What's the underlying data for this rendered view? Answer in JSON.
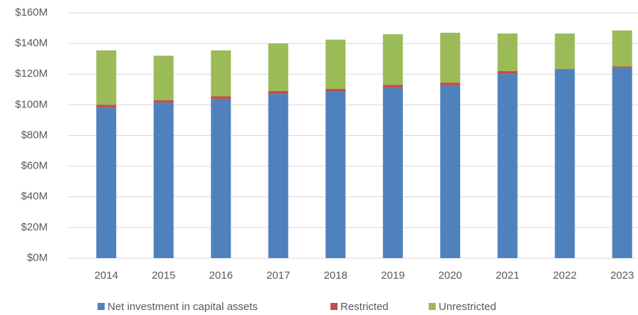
{
  "chart_data": {
    "type": "stacked_bar",
    "categories": [
      "2014",
      "2015",
      "2016",
      "2017",
      "2018",
      "2019",
      "2020",
      "2021",
      "2022",
      "2023"
    ],
    "series": [
      {
        "name": "Net investment in capital assets",
        "color": "#4f81bd",
        "values": [
          98,
          101.5,
          103.5,
          107,
          108.5,
          111,
          112.5,
          120,
          123,
          124
        ]
      },
      {
        "name": "Restricted",
        "color": "#c0504d",
        "values": [
          2,
          1.5,
          2,
          2,
          2,
          2,
          2,
          2,
          0.5,
          1
        ]
      },
      {
        "name": "Unrestricted",
        "color": "#9bbb59",
        "values": [
          35.5,
          29,
          30,
          31,
          32,
          33,
          32.5,
          24.5,
          23,
          23.5
        ]
      }
    ],
    "ylim": [
      0,
      160
    ],
    "yticks": [
      {
        "value": 0,
        "label": "$0M"
      },
      {
        "value": 20,
        "label": "$20M"
      },
      {
        "value": 40,
        "label": "$40M"
      },
      {
        "value": 60,
        "label": "$60M"
      },
      {
        "value": 80,
        "label": "$80M"
      },
      {
        "value": 100,
        "label": "$100M"
      },
      {
        "value": 120,
        "label": "$120M"
      },
      {
        "value": 140,
        "label": "$140M"
      },
      {
        "value": 160,
        "label": "$160M"
      }
    ],
    "grid": true,
    "legend": "bottom"
  }
}
